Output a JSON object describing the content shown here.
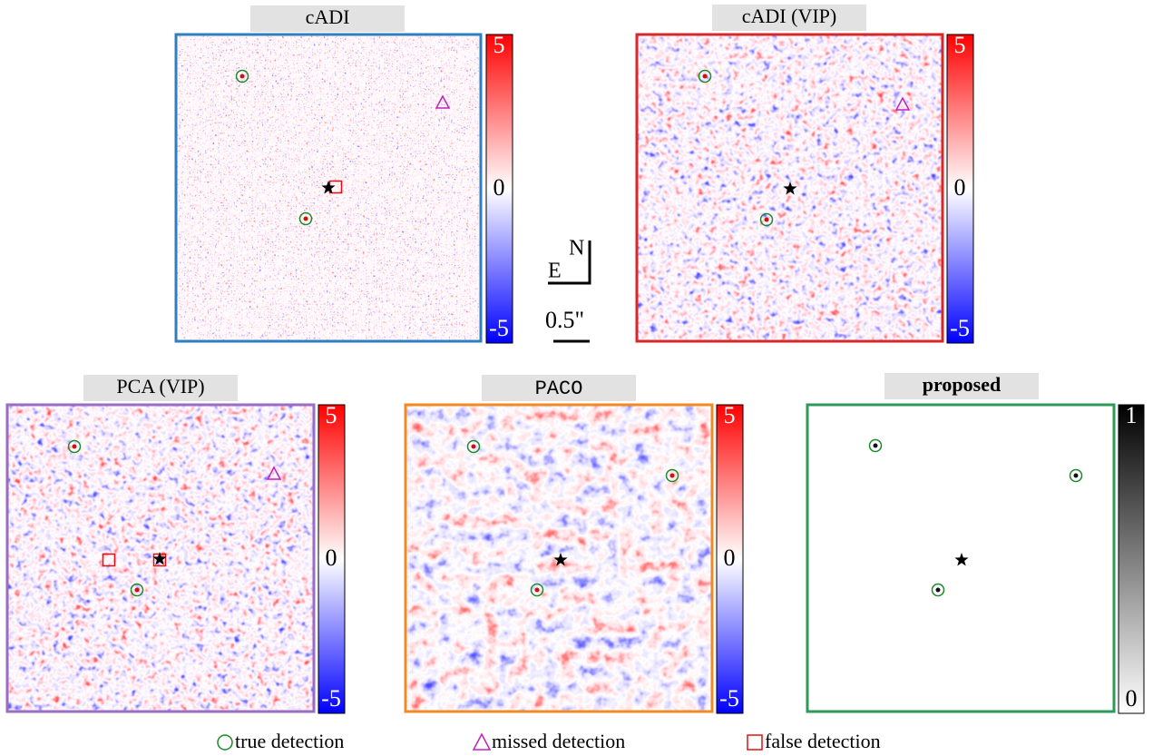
{
  "panels": [
    {
      "title": "cADI",
      "colorbar": {
        "top": "5",
        "middle": "0",
        "bottom": "-5"
      }
    },
    {
      "title": "cADI (VIP)",
      "colorbar": {
        "top": "5",
        "middle": "0",
        "bottom": "-5"
      }
    },
    {
      "title": "PCA (VIP)",
      "colorbar": {
        "top": "5",
        "middle": "0",
        "bottom": "-5"
      }
    },
    {
      "title": "PACO",
      "colorbar": {
        "top": "5",
        "middle": "0",
        "bottom": "-5"
      }
    },
    {
      "title": "proposed",
      "colorbar": {
        "top": "1",
        "bottom": "0"
      }
    }
  ],
  "compass": {
    "north": "N",
    "east": "E",
    "scale": "0.5\""
  },
  "legend": [
    "true detection",
    "missed detection",
    "false detection"
  ]
}
